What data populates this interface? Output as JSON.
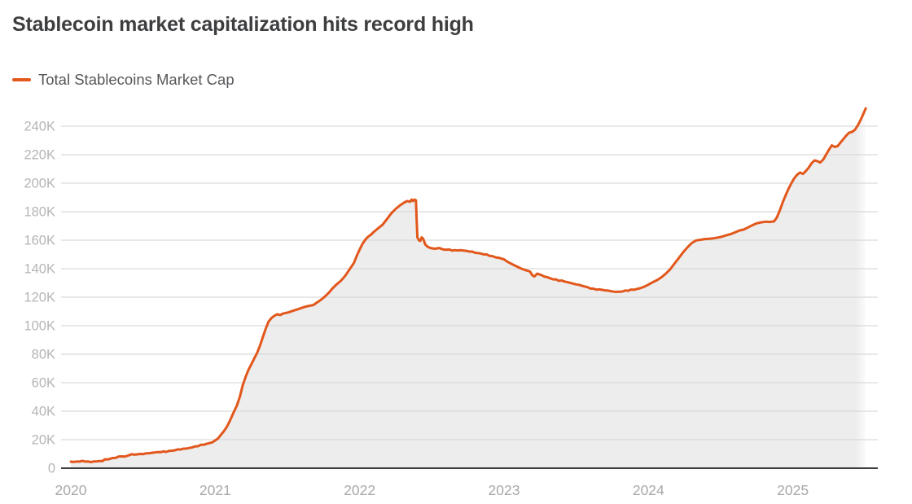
{
  "header": {
    "title": "Stablecoin market capitalization hits record high"
  },
  "legend": {
    "items": [
      {
        "label": "Total Stablecoins Market Cap",
        "swatch_color": "#e2571b"
      }
    ]
  },
  "chart_data": {
    "type": "area",
    "title": "Stablecoin market capitalization hits record high",
    "xlabel": "",
    "ylabel": "",
    "values_unit": "K",
    "xlim": [
      2020,
      2025.55
    ],
    "ylim": [
      0,
      260
    ],
    "grid": true,
    "legend_position": "top-left",
    "x_ticks": [
      {
        "t": 2020,
        "label": "2020"
      },
      {
        "t": 2021,
        "label": "2021"
      },
      {
        "t": 2022,
        "label": "2022"
      },
      {
        "t": 2023,
        "label": "2023"
      },
      {
        "t": 2024,
        "label": "2024"
      },
      {
        "t": 2025,
        "label": "2025"
      }
    ],
    "y_ticks": [
      {
        "v": 0,
        "label": "0"
      },
      {
        "v": 20,
        "label": "20K"
      },
      {
        "v": 40,
        "label": "40K"
      },
      {
        "v": 60,
        "label": "60K"
      },
      {
        "v": 80,
        "label": "80K"
      },
      {
        "v": 100,
        "label": "100K"
      },
      {
        "v": 120,
        "label": "120K"
      },
      {
        "v": 140,
        "label": "140K"
      },
      {
        "v": 160,
        "label": "160K"
      },
      {
        "v": 180,
        "label": "180K"
      },
      {
        "v": 200,
        "label": "200K"
      },
      {
        "v": 220,
        "label": "220K"
      },
      {
        "v": 240,
        "label": "240K"
      }
    ],
    "colors": {
      "line": "#e2571b",
      "area_fill": "#ededed",
      "gridline": "#d9d9d9",
      "axis_baseline": "#3f3f3f",
      "y_tick_label": "#b5b5b5",
      "x_tick_label": "#a8a8a8"
    },
    "series": [
      {
        "name": "Total Stablecoins Market Cap",
        "points": [
          [
            2020.0,
            4.6
          ],
          [
            2020.06,
            4.6
          ],
          [
            2020.12,
            4.7
          ],
          [
            2020.18,
            4.8
          ],
          [
            2020.22,
            5.0
          ],
          [
            2020.235,
            6.2
          ],
          [
            2020.27,
            6.5
          ],
          [
            2020.31,
            7.2
          ],
          [
            2020.35,
            8.3
          ],
          [
            2020.4,
            9.0
          ],
          [
            2020.44,
            9.5
          ],
          [
            2020.48,
            10.0
          ],
          [
            2020.52,
            10.4
          ],
          [
            2020.56,
            10.8
          ],
          [
            2020.6,
            11.3
          ],
          [
            2020.64,
            11.8
          ],
          [
            2020.68,
            12.1
          ],
          [
            2020.72,
            12.5
          ],
          [
            2020.76,
            13.1
          ],
          [
            2020.8,
            13.8
          ],
          [
            2020.84,
            14.6
          ],
          [
            2020.88,
            15.4
          ],
          [
            2020.92,
            16.4
          ],
          [
            2020.96,
            17.6
          ],
          [
            2021.0,
            19.5
          ],
          [
            2021.02,
            21
          ],
          [
            2021.04,
            23.5
          ],
          [
            2021.06,
            26
          ],
          [
            2021.08,
            29
          ],
          [
            2021.1,
            33
          ],
          [
            2021.12,
            37.5
          ],
          [
            2021.15,
            44
          ],
          [
            2021.17,
            50
          ],
          [
            2021.19,
            58
          ],
          [
            2021.21,
            64
          ],
          [
            2021.23,
            69
          ],
          [
            2021.25,
            73
          ],
          [
            2021.27,
            77
          ],
          [
            2021.29,
            81
          ],
          [
            2021.31,
            86
          ],
          [
            2021.33,
            92
          ],
          [
            2021.35,
            98
          ],
          [
            2021.37,
            103
          ],
          [
            2021.39,
            105.5
          ],
          [
            2021.41,
            107
          ],
          [
            2021.43,
            108
          ],
          [
            2021.45,
            107.5
          ],
          [
            2021.47,
            108.5
          ],
          [
            2021.49,
            109
          ],
          [
            2021.51,
            109.5
          ],
          [
            2021.54,
            110.5
          ],
          [
            2021.57,
            111.5
          ],
          [
            2021.6,
            112.5
          ],
          [
            2021.63,
            113.5
          ],
          [
            2021.655,
            114
          ],
          [
            2021.68,
            114.5
          ],
          [
            2021.7,
            116
          ],
          [
            2021.73,
            118
          ],
          [
            2021.76,
            120.5
          ],
          [
            2021.79,
            123.5
          ],
          [
            2021.81,
            126
          ],
          [
            2021.84,
            129
          ],
          [
            2021.87,
            131.5
          ],
          [
            2021.9,
            135
          ],
          [
            2021.93,
            139.5
          ],
          [
            2021.96,
            144
          ],
          [
            2021.98,
            149
          ],
          [
            2022.0,
            153.5
          ],
          [
            2022.02,
            157.5
          ],
          [
            2022.04,
            160.5
          ],
          [
            2022.06,
            162.5
          ],
          [
            2022.08,
            164
          ],
          [
            2022.1,
            166
          ],
          [
            2022.13,
            168.5
          ],
          [
            2022.16,
            171
          ],
          [
            2022.19,
            175
          ],
          [
            2022.22,
            179
          ],
          [
            2022.25,
            182
          ],
          [
            2022.28,
            184.5
          ],
          [
            2022.31,
            186.5
          ],
          [
            2022.33,
            187.5
          ],
          [
            2022.35,
            187
          ],
          [
            2022.36,
            188.5
          ],
          [
            2022.37,
            187.5
          ],
          [
            2022.38,
            188.5
          ],
          [
            2022.39,
            188
          ],
          [
            2022.395,
            174
          ],
          [
            2022.4,
            162
          ],
          [
            2022.41,
            160
          ],
          [
            2022.42,
            159.5
          ],
          [
            2022.43,
            162
          ],
          [
            2022.44,
            161
          ],
          [
            2022.455,
            157
          ],
          [
            2022.47,
            155.5
          ],
          [
            2022.49,
            154.5
          ],
          [
            2022.52,
            154
          ],
          [
            2022.55,
            154.5
          ],
          [
            2022.58,
            153.5
          ],
          [
            2022.62,
            153.5
          ],
          [
            2022.66,
            153
          ],
          [
            2022.7,
            153
          ],
          [
            2022.74,
            152.5
          ],
          [
            2022.78,
            152
          ],
          [
            2022.82,
            151
          ],
          [
            2022.86,
            150
          ],
          [
            2022.9,
            149
          ],
          [
            2022.94,
            148
          ],
          [
            2022.97,
            147.5
          ],
          [
            2023.0,
            146.5
          ],
          [
            2023.03,
            144.5
          ],
          [
            2023.06,
            143
          ],
          [
            2023.09,
            141.5
          ],
          [
            2023.12,
            140
          ],
          [
            2023.15,
            139
          ],
          [
            2023.18,
            138
          ],
          [
            2023.195,
            135.5
          ],
          [
            2023.21,
            134.5
          ],
          [
            2023.23,
            136.5
          ],
          [
            2023.26,
            135.5
          ],
          [
            2023.3,
            134
          ],
          [
            2023.34,
            132.5
          ],
          [
            2023.38,
            131.5
          ],
          [
            2023.42,
            131
          ],
          [
            2023.46,
            130
          ],
          [
            2023.5,
            129
          ],
          [
            2023.54,
            128
          ],
          [
            2023.58,
            127
          ],
          [
            2023.62,
            126
          ],
          [
            2023.66,
            125.5
          ],
          [
            2023.7,
            124.8
          ],
          [
            2023.74,
            124.2
          ],
          [
            2023.78,
            123.8
          ],
          [
            2023.82,
            124
          ],
          [
            2023.86,
            124.5
          ],
          [
            2023.9,
            125.2
          ],
          [
            2023.94,
            126.2
          ],
          [
            2023.97,
            127.3
          ],
          [
            2024.0,
            128.8
          ],
          [
            2024.03,
            130.5
          ],
          [
            2024.06,
            132
          ],
          [
            2024.09,
            134
          ],
          [
            2024.12,
            136.5
          ],
          [
            2024.15,
            139.5
          ],
          [
            2024.18,
            143.5
          ],
          [
            2024.21,
            147.5
          ],
          [
            2024.24,
            151.5
          ],
          [
            2024.27,
            155
          ],
          [
            2024.3,
            158
          ],
          [
            2024.33,
            159.8
          ],
          [
            2024.36,
            160.3
          ],
          [
            2024.39,
            160.8
          ],
          [
            2024.42,
            161
          ],
          [
            2024.45,
            161.3
          ],
          [
            2024.48,
            161.8
          ],
          [
            2024.51,
            162.5
          ],
          [
            2024.54,
            163.5
          ],
          [
            2024.57,
            164.3
          ],
          [
            2024.6,
            165.5
          ],
          [
            2024.63,
            166.8
          ],
          [
            2024.66,
            167.5
          ],
          [
            2024.69,
            169
          ],
          [
            2024.72,
            170.5
          ],
          [
            2024.75,
            171.8
          ],
          [
            2024.78,
            172.5
          ],
          [
            2024.81,
            173
          ],
          [
            2024.84,
            172.8
          ],
          [
            2024.87,
            173.2
          ],
          [
            2024.89,
            176
          ],
          [
            2024.91,
            181
          ],
          [
            2024.93,
            186.5
          ],
          [
            2024.95,
            191.5
          ],
          [
            2024.97,
            196
          ],
          [
            2024.99,
            200
          ],
          [
            2025.01,
            203.5
          ],
          [
            2025.03,
            206
          ],
          [
            2025.05,
            207.5
          ],
          [
            2025.07,
            206.5
          ],
          [
            2025.09,
            208.5
          ],
          [
            2025.11,
            211
          ],
          [
            2025.13,
            214
          ],
          [
            2025.15,
            216
          ],
          [
            2025.17,
            215.5
          ],
          [
            2025.19,
            214.5
          ],
          [
            2025.21,
            216.5
          ],
          [
            2025.23,
            220
          ],
          [
            2025.25,
            223.5
          ],
          [
            2025.27,
            226.5
          ],
          [
            2025.29,
            225.5
          ],
          [
            2025.31,
            226
          ],
          [
            2025.33,
            228.5
          ],
          [
            2025.35,
            231
          ],
          [
            2025.37,
            233.5
          ],
          [
            2025.39,
            235.5
          ],
          [
            2025.41,
            236
          ],
          [
            2025.43,
            237.5
          ],
          [
            2025.45,
            240.5
          ],
          [
            2025.47,
            244.5
          ],
          [
            2025.49,
            249
          ],
          [
            2025.505,
            252.5
          ]
        ]
      }
    ]
  }
}
